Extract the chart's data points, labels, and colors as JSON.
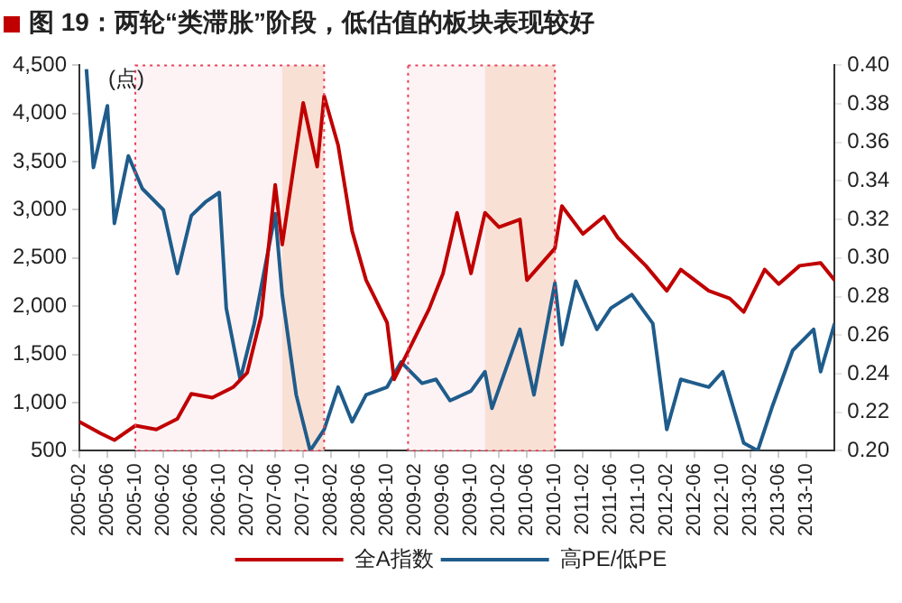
{
  "chart_data": {
    "type": "line",
    "title": "图 19：两轮“类滞胀”阶段，低估值的板块表现较好",
    "annotations": [
      "(点)"
    ],
    "xlim": [
      "2005-02",
      "2014-02"
    ],
    "xticks": [
      "2005-02",
      "2005-06",
      "2005-10",
      "2006-02",
      "2006-06",
      "2006-10",
      "2007-02",
      "2007-06",
      "2007-10",
      "2008-02",
      "2008-06",
      "2008-10",
      "2009-02",
      "2009-06",
      "2009-10",
      "2010-02",
      "2010-06",
      "2010-10",
      "2011-02",
      "2011-06",
      "2011-10",
      "2012-02",
      "2012-06",
      "2012-10",
      "2013-02",
      "2013-06",
      "2013-10"
    ],
    "ylim": [
      500,
      4500
    ],
    "yticks": [
      {
        "value": 500,
        "label": "500"
      },
      {
        "value": 1000,
        "label": "1,000"
      },
      {
        "value": 1500,
        "label": "1,500"
      },
      {
        "value": 2000,
        "label": "2,000"
      },
      {
        "value": 2500,
        "label": "2,500"
      },
      {
        "value": 3000,
        "label": "3,000"
      },
      {
        "value": 3500,
        "label": "3,500"
      },
      {
        "value": 4000,
        "label": "4,000"
      },
      {
        "value": 4500,
        "label": "4,500"
      }
    ],
    "y2lim": [
      0.2,
      0.4
    ],
    "y2ticks": [
      {
        "value": 0.2,
        "label": "0.20"
      },
      {
        "value": 0.22,
        "label": "0.22"
      },
      {
        "value": 0.24,
        "label": "0.24"
      },
      {
        "value": 0.26,
        "label": "0.26"
      },
      {
        "value": 0.28,
        "label": "0.28"
      },
      {
        "value": 0.3,
        "label": "0.30"
      },
      {
        "value": 0.32,
        "label": "0.32"
      },
      {
        "value": 0.34,
        "label": "0.34"
      },
      {
        "value": 0.36,
        "label": "0.36"
      },
      {
        "value": 0.38,
        "label": "0.38"
      },
      {
        "value": 0.4,
        "label": "0.40"
      }
    ],
    "grid": false,
    "legend": "bottom",
    "marker": "none",
    "line_style": "solid",
    "bands": [
      {
        "axis": "x",
        "from": "2007-07",
        "to": "2008-01",
        "color": "#f8dccf"
      },
      {
        "axis": "x",
        "from": "2009-12",
        "to": "2010-10",
        "color": "#f8dccf"
      },
      {
        "axis": "x",
        "from": "2005-10",
        "to": "2008-01",
        "color": "#fdf1f3"
      },
      {
        "axis": "x",
        "from": "2009-01",
        "to": "2010-10",
        "color": "#fdf1f3"
      }
    ],
    "series": [
      {
        "name": "全A指数",
        "color": "#c00000",
        "x": [
          "2005-02",
          "2005-05",
          "2005-07",
          "2005-10",
          "2006-01",
          "2006-04",
          "2006-06",
          "2006-09",
          "2006-12",
          "2007-02",
          "2007-04",
          "2007-06",
          "2007-07",
          "2007-10",
          "2007-12",
          "2008-01",
          "2008-03",
          "2008-05",
          "2008-07",
          "2008-10",
          "2008-11",
          "2009-01",
          "2009-04",
          "2009-06",
          "2009-08",
          "2009-10",
          "2009-12",
          "2010-02",
          "2010-05",
          "2010-06",
          "2010-10",
          "2010-11",
          "2011-02",
          "2011-05",
          "2011-07",
          "2011-11",
          "2012-02",
          "2012-04",
          "2012-08",
          "2012-11",
          "2013-01",
          "2013-04",
          "2013-06",
          "2013-09",
          "2013-12",
          "2014-02"
        ],
        "values": [
          800,
          680,
          610,
          760,
          720,
          830,
          1090,
          1050,
          1160,
          1310,
          1900,
          3260,
          2640,
          4110,
          3450,
          4180,
          3670,
          2780,
          2270,
          1830,
          1240,
          1530,
          1970,
          2340,
          2970,
          2340,
          2970,
          2820,
          2900,
          2270,
          2600,
          3040,
          2750,
          2930,
          2710,
          2420,
          2160,
          2380,
          2160,
          2080,
          1940,
          2380,
          2230,
          2420,
          2450,
          2270
        ]
      },
      {
        "name": "高PE/低PE",
        "color": "#1f5c8b",
        "axis": "y2",
        "x": [
          "2005-03",
          "2005-04",
          "2005-06",
          "2005-07",
          "2005-09",
          "2005-11",
          "2006-02",
          "2006-04",
          "2006-06",
          "2006-08",
          "2006-10",
          "2006-11",
          "2007-01",
          "2007-03",
          "2007-06",
          "2007-07",
          "2007-09",
          "2007-11",
          "2008-01",
          "2008-03",
          "2008-05",
          "2008-07",
          "2008-10",
          "2008-12",
          "2009-03",
          "2009-05",
          "2009-07",
          "2009-10",
          "2009-12",
          "2010-01",
          "2010-05",
          "2010-07",
          "2010-10",
          "2010-11",
          "2011-01",
          "2011-04",
          "2011-06",
          "2011-09",
          "2011-12",
          "2012-02",
          "2012-04",
          "2012-08",
          "2012-10",
          "2013-01",
          "2013-03",
          "2013-05",
          "2013-08",
          "2013-11",
          "2013-12",
          "2014-02"
        ],
        "values": [
          0.398,
          0.347,
          0.379,
          0.318,
          0.353,
          0.336,
          0.325,
          0.292,
          0.322,
          0.329,
          0.334,
          0.274,
          0.237,
          0.266,
          0.323,
          0.281,
          0.229,
          0.2,
          0.211,
          0.233,
          0.215,
          0.229,
          0.233,
          0.246,
          0.235,
          0.237,
          0.226,
          0.231,
          0.241,
          0.222,
          0.263,
          0.229,
          0.287,
          0.255,
          0.288,
          0.263,
          0.274,
          0.281,
          0.266,
          0.211,
          0.237,
          0.233,
          0.241,
          0.204,
          0.2,
          0.222,
          0.252,
          0.263,
          0.241,
          0.266
        ]
      }
    ]
  }
}
